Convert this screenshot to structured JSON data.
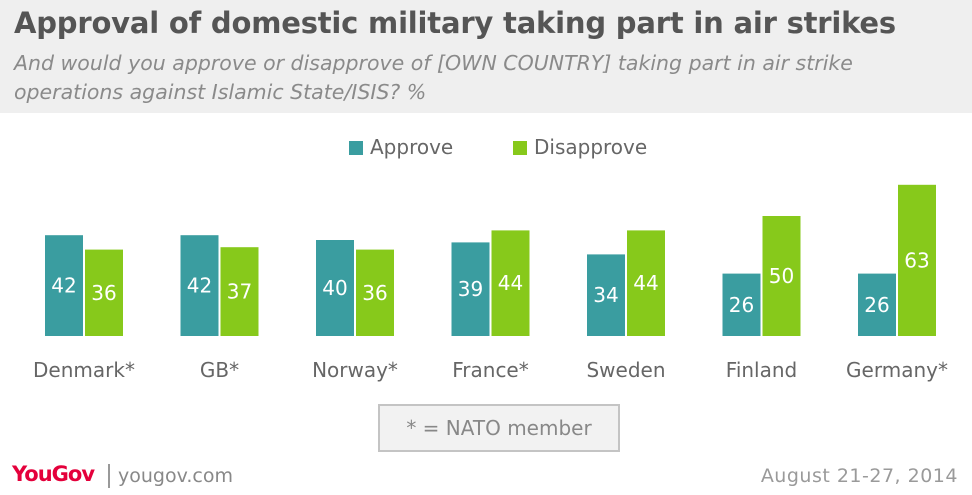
{
  "header": {
    "title": "Approval of domestic military taking part in air strikes",
    "subtitle": "And would you approve or disapprove of [OWN COUNTRY] taking part in air strike operations against Islamic State/ISIS? %"
  },
  "colors": {
    "approve": "#3a9da0",
    "disapprove": "#87c91b",
    "header_bg": "#efefef",
    "brand": "#e4003b"
  },
  "chart_data": {
    "type": "bar",
    "title": "Approval of domestic military taking part in air strikes",
    "subtitle": "And would you approve or disapprove of [OWN COUNTRY] taking part in air strike operations against Islamic State/ISIS? %",
    "categories": [
      "Denmark*",
      "GB*",
      "Norway*",
      "France*",
      "Sweden",
      "Finland",
      "Germany*"
    ],
    "series": [
      {
        "name": "Approve",
        "values": [
          42,
          42,
          40,
          39,
          34,
          26,
          26
        ]
      },
      {
        "name": "Disapprove",
        "values": [
          36,
          37,
          36,
          44,
          44,
          50,
          63
        ]
      }
    ],
    "ylim": [
      0,
      70
    ],
    "xlabel": "",
    "ylabel": "",
    "legend_position": "top-center",
    "grid": false
  },
  "note": "* = NATO member",
  "footer": {
    "logo_text": "YouGov",
    "site": "yougov.com",
    "date": "August 21-27, 2014"
  }
}
